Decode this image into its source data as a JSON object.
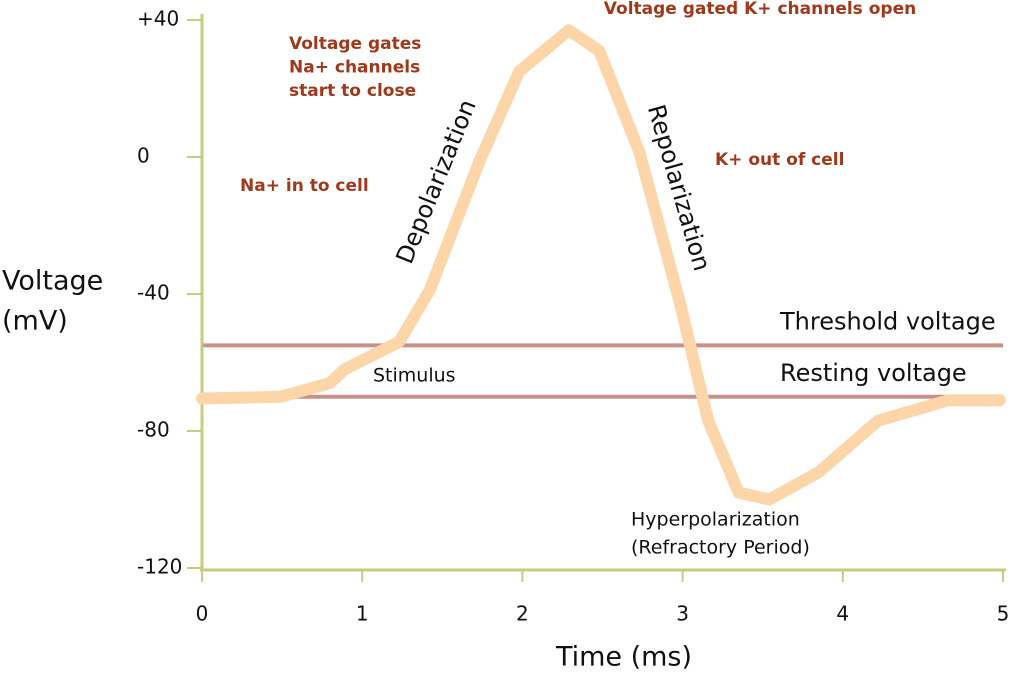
{
  "chart_data": {
    "type": "line",
    "x_label": "Time (ms)",
    "y_label": [
      "Voltage",
      "(mV)"
    ],
    "x": [
      0,
      0.49,
      0.8,
      0.89,
      1.23,
      1.42,
      1.73,
      1.98,
      2.29,
      2.48,
      2.73,
      2.98,
      3.16,
      3.35,
      3.54,
      3.85,
      4.22,
      4.66,
      4.98
    ],
    "series": [
      {
        "color": "#fcd6a9",
        "values": [
          -70.5,
          -70,
          -66,
          -62,
          -54,
          -39,
          -1.5,
          25,
          37,
          31,
          1.5,
          -42,
          -77,
          -98,
          -100,
          -92,
          -77,
          -71,
          -71
        ]
      }
    ],
    "xlim": [
      0,
      5
    ],
    "xticks": [
      0,
      1,
      2,
      3,
      4,
      5
    ],
    "ylim": [
      -120,
      40
    ],
    "yticks": [
      {
        "value": 40,
        "label": "+40"
      },
      0,
      -40,
      -80,
      -120
    ],
    "axis_color": "#c3cc7f",
    "reference_lines": [
      {
        "name": "Threshold voltage",
        "value": -55,
        "color": "#c99088"
      },
      {
        "name": "Resting voltage",
        "value": -70,
        "color": "#c99088"
      }
    ],
    "annotations": [
      {
        "lines": [
          "Voltage gated K+ channels open"
        ]
      },
      {
        "lines": [
          "Voltage gates",
          "Na+ channels",
          "start to close"
        ]
      },
      {
        "lines": [
          "Na+ in to cell"
        ]
      },
      {
        "lines": [
          "K+ out of cell"
        ]
      },
      {
        "lines": [
          "Depolarization"
        ]
      },
      {
        "lines": [
          "Repolarization"
        ]
      },
      {
        "lines": [
          "Stimulus"
        ]
      },
      {
        "lines": [
          "Hyperpolarization",
          "(Refractory Period)"
        ]
      }
    ]
  }
}
